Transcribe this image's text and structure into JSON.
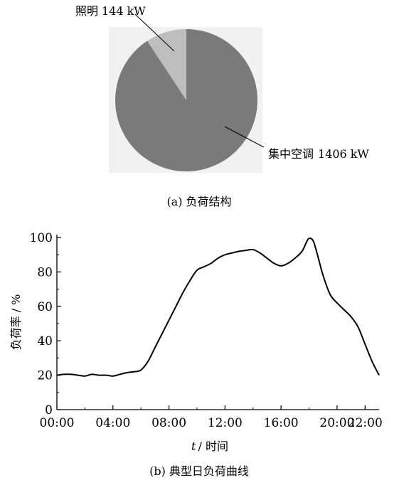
{
  "chart_data": [
    {
      "type": "pie",
      "caption": "(a) 负荷结构",
      "slices": [
        {
          "label": "集中空调",
          "value": 1406,
          "unit": "kW",
          "color": "#7a7a7a"
        },
        {
          "label": "照明",
          "value": 144,
          "unit": "kW",
          "color": "#bdbdbd"
        }
      ]
    },
    {
      "type": "line",
      "caption": "(b) 典型日负荷曲线",
      "xlabel_var": "t",
      "xlabel_text": "/ 时间",
      "ylabel": "负荷率 / %",
      "ylim": [
        0,
        100
      ],
      "yticks": [
        0,
        20,
        40,
        60,
        80,
        100
      ],
      "xlim": [
        0,
        23
      ],
      "xticks": [
        {
          "value": 0,
          "label": "00:00"
        },
        {
          "value": 4,
          "label": "04:00"
        },
        {
          "value": 8,
          "label": "08:00"
        },
        {
          "value": 12,
          "label": "12:00"
        },
        {
          "value": 16,
          "label": "16:00"
        },
        {
          "value": 20,
          "label": "20:00"
        },
        {
          "value": 22,
          "label": "22:00"
        }
      ],
      "color": "#000000",
      "series": [
        {
          "x": [
            0,
            0.5,
            1,
            1.5,
            2,
            2.5,
            3,
            3.5,
            4,
            4.5,
            5,
            5.5,
            6,
            6.5,
            7,
            7.5,
            8,
            8.5,
            9,
            9.5,
            10,
            10.5,
            11,
            11.5,
            12,
            12.5,
            13,
            13.5,
            14,
            14.5,
            15,
            15.5,
            16,
            16.5,
            17,
            17.5,
            17.8,
            18,
            18.3,
            18.6,
            19,
            19.5,
            20,
            20.5,
            21,
            21.5,
            22,
            22.5,
            23
          ],
          "y": [
            20,
            20.5,
            20.5,
            20,
            19.5,
            20.5,
            20,
            20,
            19.5,
            20.5,
            21.5,
            22,
            23,
            28,
            36,
            44,
            52,
            60,
            68,
            75,
            81,
            83,
            85,
            88,
            90,
            91,
            92,
            92.5,
            93,
            91,
            88,
            85,
            83.5,
            85,
            88,
            92,
            97,
            99.5,
            98,
            90,
            78,
            67,
            62,
            58,
            54,
            48,
            38,
            28,
            20
          ]
        }
      ]
    }
  ]
}
